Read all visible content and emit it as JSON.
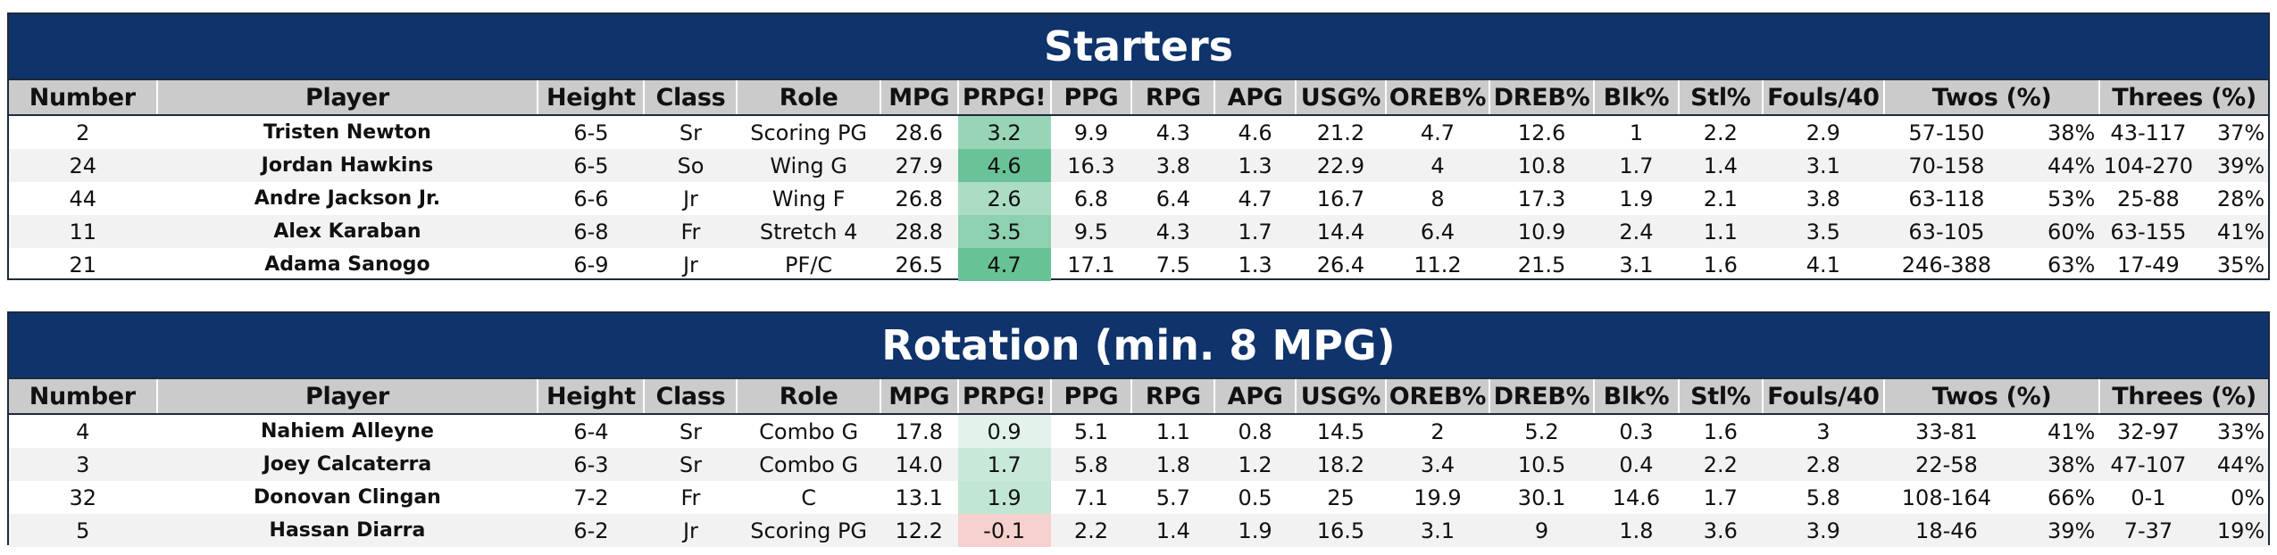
{
  "columns": [
    "Number",
    "Player",
    "Height",
    "Class",
    "Role",
    "MPG",
    "PRPG!",
    "PPG",
    "RPG",
    "APG",
    "USG%",
    "OREB%",
    "DREB%",
    "Blk%",
    "Stl%",
    "Fouls/40",
    "Twos (%)",
    "Threes (%)"
  ],
  "prpg_colors": {
    "positive": "#57bb8a",
    "negative": "#e67c73",
    "neutral": "#ffffff"
  },
  "header_color": "#0f336b",
  "sections": [
    {
      "title": "Starters",
      "rows": [
        {
          "number": "2",
          "player": "Tristen Newton",
          "height": "6-5",
          "class": "Sr",
          "role": "Scoring PG",
          "mpg": "28.6",
          "prpg": "3.2",
          "ppg": "9.9",
          "rpg": "4.3",
          "apg": "4.6",
          "usg": "21.2",
          "oreb": "4.7",
          "dreb": "12.6",
          "blk": "1",
          "stl": "2.2",
          "fouls": "2.9",
          "twos": "57-150",
          "twos_pct": "38%",
          "threes": "43-117",
          "threes_pct": "37%"
        },
        {
          "number": "24",
          "player": "Jordan Hawkins",
          "height": "6-5",
          "class": "So",
          "role": "Wing G",
          "mpg": "27.9",
          "prpg": "4.6",
          "ppg": "16.3",
          "rpg": "3.8",
          "apg": "1.3",
          "usg": "22.9",
          "oreb": "4",
          "dreb": "10.8",
          "blk": "1.7",
          "stl": "1.4",
          "fouls": "3.1",
          "twos": "70-158",
          "twos_pct": "44%",
          "threes": "104-270",
          "threes_pct": "39%"
        },
        {
          "number": "44",
          "player": "Andre Jackson Jr.",
          "height": "6-6",
          "class": "Jr",
          "role": "Wing F",
          "mpg": "26.8",
          "prpg": "2.6",
          "ppg": "6.8",
          "rpg": "6.4",
          "apg": "4.7",
          "usg": "16.7",
          "oreb": "8",
          "dreb": "17.3",
          "blk": "1.9",
          "stl": "2.1",
          "fouls": "3.8",
          "twos": "63-118",
          "twos_pct": "53%",
          "threes": "25-88",
          "threes_pct": "28%"
        },
        {
          "number": "11",
          "player": "Alex Karaban",
          "height": "6-8",
          "class": "Fr",
          "role": "Stretch 4",
          "mpg": "28.8",
          "prpg": "3.5",
          "ppg": "9.5",
          "rpg": "4.3",
          "apg": "1.7",
          "usg": "14.4",
          "oreb": "6.4",
          "dreb": "10.9",
          "blk": "2.4",
          "stl": "1.1",
          "fouls": "3.5",
          "twos": "63-105",
          "twos_pct": "60%",
          "threes": "63-155",
          "threes_pct": "41%"
        },
        {
          "number": "21",
          "player": "Adama Sanogo",
          "height": "6-9",
          "class": "Jr",
          "role": "PF/C",
          "mpg": "26.5",
          "prpg": "4.7",
          "ppg": "17.1",
          "rpg": "7.5",
          "apg": "1.3",
          "usg": "26.4",
          "oreb": "11.2",
          "dreb": "21.5",
          "blk": "3.1",
          "stl": "1.6",
          "fouls": "4.1",
          "twos": "246-388",
          "twos_pct": "63%",
          "threes": "17-49",
          "threes_pct": "35%"
        }
      ]
    },
    {
      "title": "Rotation (min. 8 MPG)",
      "rows": [
        {
          "number": "4",
          "player": "Nahiem Alleyne",
          "height": "6-4",
          "class": "Sr",
          "role": "Combo G",
          "mpg": "17.8",
          "prpg": "0.9",
          "ppg": "5.1",
          "rpg": "1.1",
          "apg": "0.8",
          "usg": "14.5",
          "oreb": "2",
          "dreb": "5.2",
          "blk": "0.3",
          "stl": "1.6",
          "fouls": "3",
          "twos": "33-81",
          "twos_pct": "41%",
          "threes": "32-97",
          "threes_pct": "33%"
        },
        {
          "number": "3",
          "player": "Joey Calcaterra",
          "height": "6-3",
          "class": "Sr",
          "role": "Combo G",
          "mpg": "14.0",
          "prpg": "1.7",
          "ppg": "5.8",
          "rpg": "1.8",
          "apg": "1.2",
          "usg": "18.2",
          "oreb": "3.4",
          "dreb": "10.5",
          "blk": "0.4",
          "stl": "2.2",
          "fouls": "2.8",
          "twos": "22-58",
          "twos_pct": "38%",
          "threes": "47-107",
          "threes_pct": "44%"
        },
        {
          "number": "32",
          "player": "Donovan Clingan",
          "height": "7-2",
          "class": "Fr",
          "role": "C",
          "mpg": "13.1",
          "prpg": "1.9",
          "ppg": "7.1",
          "rpg": "5.7",
          "apg": "0.5",
          "usg": "25",
          "oreb": "19.9",
          "dreb": "30.1",
          "blk": "14.6",
          "stl": "1.7",
          "fouls": "5.8",
          "twos": "108-164",
          "twos_pct": "66%",
          "threes": "0-1",
          "threes_pct": "0%"
        },
        {
          "number": "5",
          "player": "Hassan Diarra",
          "height": "6-2",
          "class": "Jr",
          "role": "Scoring PG",
          "mpg": "12.2",
          "prpg": "-0.1",
          "ppg": "2.2",
          "rpg": "1.4",
          "apg": "1.9",
          "usg": "16.5",
          "oreb": "3.1",
          "dreb": "9",
          "blk": "1.8",
          "stl": "3.6",
          "fouls": "3.9",
          "twos": "18-46",
          "twos_pct": "39%",
          "threes": "7-37",
          "threes_pct": "19%"
        }
      ]
    }
  ]
}
